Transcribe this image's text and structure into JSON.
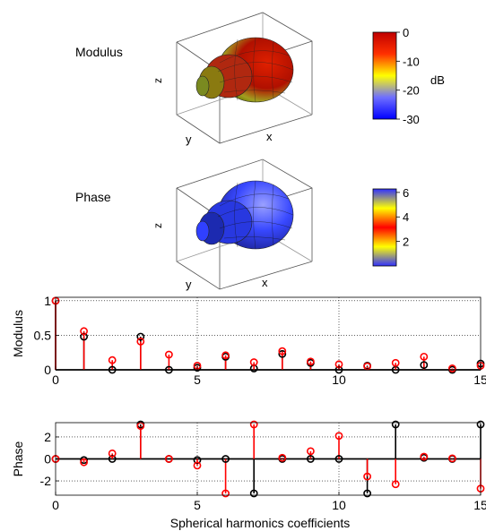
{
  "modulus_panel": {
    "title": "Modulus",
    "axis_x": "x",
    "axis_y": "y",
    "axis_z": "z",
    "colorbar": {
      "ticks": [
        "0",
        "-10",
        "-20",
        "-30"
      ],
      "tick_values": [
        0,
        -10,
        -20,
        -30
      ],
      "range": [
        -30,
        0
      ],
      "unit": "dB",
      "colormap": [
        "#0000ff",
        "#6f6fff",
        "#ffff00",
        "#ff3000",
        "#c00000"
      ]
    }
  },
  "phase_panel": {
    "title": "Phase",
    "axis_x": "x",
    "axis_y": "y",
    "axis_z": "z",
    "colorbar": {
      "ticks": [
        "6",
        "4",
        "2"
      ],
      "tick_values": [
        6,
        4,
        2
      ],
      "range": [
        0,
        6.283
      ],
      "colormap": [
        "#3030ff",
        "#ffff00",
        "#ff0000",
        "#ffff00",
        "#3030ff"
      ]
    }
  },
  "colors": {
    "series_black": "#000000",
    "series_red": "#ff0000",
    "surface_modulus": "#cc2200",
    "surface_phase": "#3040ff"
  },
  "chart_data": [
    {
      "type": "stem",
      "ylabel": "Modulus",
      "xlim": [
        0,
        15
      ],
      "ylim": [
        0,
        1.05
      ],
      "xticks": [
        0,
        5,
        10,
        15
      ],
      "yticks": [
        0,
        0.5,
        1
      ],
      "ytick_labels": [
        "0",
        "0.5",
        "1"
      ],
      "grid": "dotted",
      "series": [
        {
          "color": "#000000",
          "x": [
            0,
            1,
            2,
            3,
            4,
            5,
            6,
            7,
            8,
            9,
            10,
            11,
            12,
            13,
            14,
            15
          ],
          "values": [
            1.0,
            0.48,
            0.0,
            0.48,
            0.0,
            0.03,
            0.19,
            0.02,
            0.23,
            0.1,
            0.0,
            0.06,
            0.0,
            0.07,
            0.0,
            0.09
          ]
        },
        {
          "color": "#ff0000",
          "x": [
            0,
            1,
            2,
            3,
            4,
            5,
            6,
            7,
            8,
            9,
            10,
            11,
            12,
            13,
            14,
            15
          ],
          "values": [
            1.0,
            0.56,
            0.14,
            0.41,
            0.22,
            0.06,
            0.21,
            0.11,
            0.27,
            0.12,
            0.08,
            0.05,
            0.1,
            0.19,
            0.02,
            0.06
          ]
        }
      ]
    },
    {
      "type": "stem",
      "ylabel": "Phase",
      "xlabel": "Spherical harmonics coefficients",
      "xlim": [
        0,
        15
      ],
      "ylim": [
        -3.3,
        3.3
      ],
      "xticks": [
        0,
        5,
        10,
        15
      ],
      "yticks": [
        -2,
        0,
        2
      ],
      "ytick_labels": [
        "-2",
        "0",
        "2"
      ],
      "grid": "dotted",
      "series": [
        {
          "color": "#000000",
          "x": [
            0,
            1,
            2,
            3,
            4,
            5,
            6,
            7,
            8,
            9,
            10,
            11,
            12,
            13,
            14,
            15
          ],
          "values": [
            0,
            -0.1,
            0,
            3.14,
            0,
            -0.1,
            0,
            -3.14,
            0,
            0,
            0,
            -3.14,
            3.14,
            0.1,
            0,
            3.14
          ]
        },
        {
          "color": "#ff0000",
          "x": [
            0,
            1,
            2,
            3,
            4,
            5,
            6,
            7,
            8,
            9,
            10,
            11,
            12,
            13,
            14,
            15
          ],
          "values": [
            0,
            -0.3,
            0.5,
            3.0,
            0,
            -0.6,
            -3.14,
            3.14,
            0.1,
            0.7,
            2.1,
            -1.6,
            -2.3,
            0.2,
            0.05,
            -2.7
          ]
        }
      ]
    }
  ]
}
